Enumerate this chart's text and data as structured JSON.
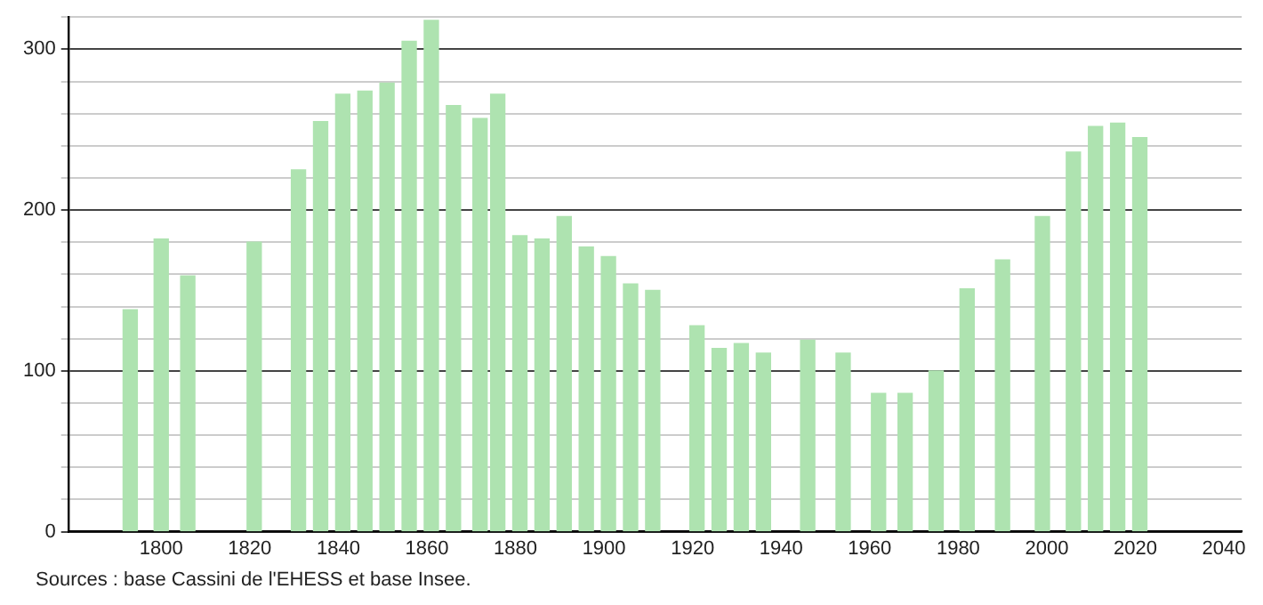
{
  "chart_data": {
    "type": "bar",
    "color": "#aee3b0",
    "x": [
      1793,
      1800,
      1806,
      1821,
      1831,
      1836,
      1841,
      1846,
      1851,
      1856,
      1861,
      1866,
      1872,
      1876,
      1881,
      1886,
      1891,
      1896,
      1901,
      1906,
      1911,
      1921,
      1926,
      1931,
      1936,
      1946,
      1954,
      1962,
      1968,
      1975,
      1982,
      1990,
      1999,
      2006,
      2011,
      2016,
      2021
    ],
    "values": [
      138,
      182,
      159,
      180,
      225,
      255,
      272,
      274,
      279,
      305,
      318,
      265,
      257,
      272,
      184,
      182,
      196,
      177,
      171,
      154,
      150,
      128,
      114,
      117,
      111,
      119,
      111,
      86,
      86,
      100,
      151,
      169,
      196,
      236,
      252,
      254,
      245
    ],
    "xlim": [
      1779,
      2044
    ],
    "xticks": [
      1800,
      1820,
      1840,
      1860,
      1880,
      1900,
      1920,
      1940,
      1960,
      1980,
      2000,
      2020,
      2040
    ],
    "ylim": [
      0,
      320
    ],
    "yticks": [
      0,
      {
        "value": 20,
        "label": null
      },
      {
        "value": 40,
        "label": null
      },
      {
        "value": 60,
        "label": null
      },
      {
        "value": 80,
        "label": null
      },
      100,
      {
        "value": 120,
        "label": null
      },
      {
        "value": 140,
        "label": null
      },
      {
        "value": 160,
        "label": null
      },
      {
        "value": 180,
        "label": null
      },
      200,
      {
        "value": 220,
        "label": null
      },
      {
        "value": 240,
        "label": null
      },
      {
        "value": 260,
        "label": null
      },
      {
        "value": 280,
        "label": null
      },
      300,
      {
        "value": 320,
        "label": null
      }
    ],
    "grid": "y",
    "annotations": [
      "Sources : base Cassini de l'EHESS et base Insee."
    ]
  }
}
